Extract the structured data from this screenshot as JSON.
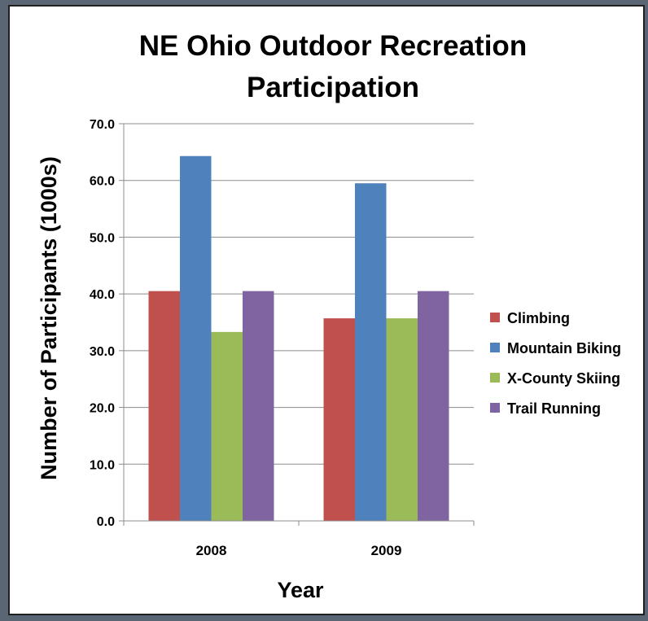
{
  "chart_data": {
    "type": "bar",
    "title_lines": [
      "NE Ohio Outdoor Recreation",
      "Participation"
    ],
    "xlabel": "Year",
    "ylabel": "Number of Participants (1000s)",
    "categories": [
      "2008",
      "2009"
    ],
    "series": [
      {
        "name": "Climbing",
        "values": [
          40.5,
          35.7
        ],
        "color": "#c0504d"
      },
      {
        "name": "Mountain Biking",
        "values": [
          64.3,
          59.5
        ],
        "color": "#4f81bd"
      },
      {
        "name": "X-County Skiing",
        "values": [
          33.3,
          35.7
        ],
        "color": "#9bbb59"
      },
      {
        "name": "Trail Running",
        "values": [
          40.5,
          40.5
        ],
        "color": "#8064a2"
      }
    ],
    "ylim": [
      0,
      70
    ],
    "yticks": [
      "0.0",
      "10.0",
      "20.0",
      "30.0",
      "40.0",
      "50.0",
      "60.0",
      "70.0"
    ],
    "grid": true,
    "legend_position": "right"
  }
}
